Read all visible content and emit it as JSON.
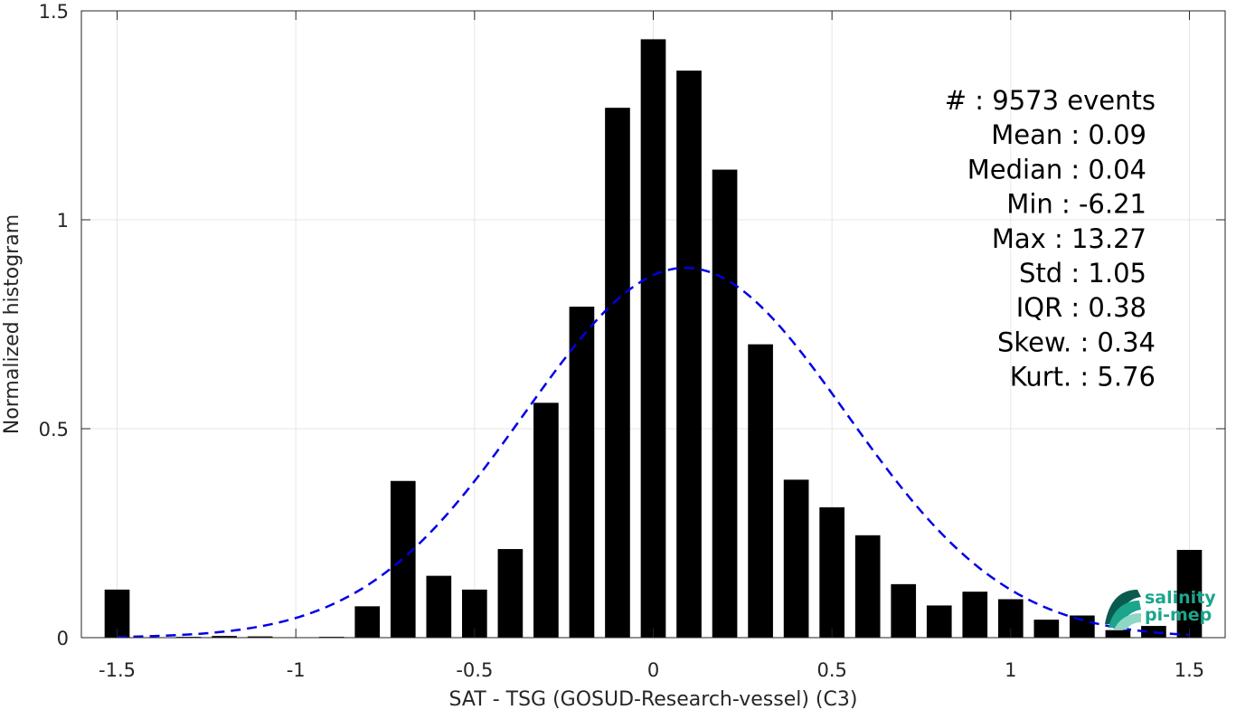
{
  "chart_data": {
    "type": "bar",
    "xlabel": "SAT - TSG (GOSUD-Research-vessel) (C3)",
    "ylabel": "Normalized histogram",
    "xlim": [
      -1.6,
      1.6
    ],
    "ylim": [
      0,
      1.5
    ],
    "xticks": [
      -1.5,
      -1,
      -0.5,
      0,
      0.5,
      1,
      1.5
    ],
    "xtick_labels": [
      "-1.5",
      "-1",
      "-0.5",
      "0",
      "0.5",
      "1",
      "1.5"
    ],
    "yticks": [
      0,
      0.5,
      1,
      1.5
    ],
    "ytick_labels": [
      "0",
      "0.5",
      "1",
      "1.5"
    ],
    "grid": true,
    "bar_color": "#000000",
    "bar_width": 0.07,
    "x": [
      -1.5,
      -1.4,
      -1.3,
      -1.2,
      -1.1,
      -1.0,
      -0.9,
      -0.8,
      -0.7,
      -0.6,
      -0.5,
      -0.4,
      -0.3,
      -0.2,
      -0.1,
      0.0,
      0.1,
      0.2,
      0.3,
      0.4,
      0.5,
      0.6,
      0.7,
      0.8,
      0.9,
      1.0,
      1.1,
      1.2,
      1.3,
      1.4,
      1.5
    ],
    "values": [
      0.115,
      0.0,
      0.002,
      0.004,
      0.003,
      0.0,
      0.002,
      0.075,
      0.375,
      0.148,
      0.115,
      0.212,
      0.562,
      0.792,
      1.268,
      1.432,
      1.357,
      1.12,
      0.702,
      0.378,
      0.312,
      0.245,
      0.128,
      0.077,
      0.11,
      0.092,
      0.043,
      0.053,
      0.018,
      0.028,
      0.21
    ],
    "fit_curve": {
      "type": "gaussian",
      "style": "dashed",
      "color": "#0000e6",
      "mean": 0.09,
      "std": 0.45,
      "peak": 0.885,
      "x_range": [
        -1.5,
        1.5
      ]
    },
    "annotations": [
      "#  : 9573 events",
      "Mean : 0.09",
      "Median : 0.04",
      "Min : -6.21",
      "Max : 13.27",
      "Std : 1.05",
      "IQR : 0.38",
      "Skew. : 0.34",
      "Kurt. : 5.76"
    ]
  },
  "logo": {
    "line1": "salinity",
    "line2": "pi-mep",
    "color_teal": "#1aa58c",
    "color_dark": "#0b5a50"
  }
}
